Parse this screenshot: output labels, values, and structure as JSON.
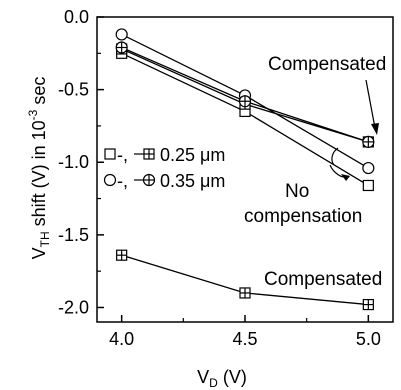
{
  "chart_data": {
    "type": "line",
    "xlabel": "V_D (V)",
    "xlabel_main": "V",
    "xlabel_sub": "D",
    "xlabel_unit": " (V)",
    "ylabel_pre": "V",
    "ylabel_sub": "TH",
    "ylabel_mid": " shift (V) in 10",
    "ylabel_sup": "-3",
    "ylabel_post": " sec",
    "xlim": [
      3.9,
      5.1
    ],
    "ylim": [
      -2.1,
      0.0
    ],
    "x_ticks": [
      "4.0",
      "4.5",
      "5.0"
    ],
    "x_tick_values": [
      4.0,
      4.5,
      5.0
    ],
    "y_ticks": [
      "0.0",
      "-0.5",
      "-1.0",
      "-1.5",
      "-2.0"
    ],
    "y_tick_values": [
      0.0,
      -0.5,
      -1.0,
      -1.5,
      -2.0
    ],
    "grid": false,
    "series": [
      {
        "marker": "square",
        "x": [
          4.0,
          4.5,
          5.0
        ],
        "values": [
          -0.25,
          -0.65,
          -1.16
        ]
      },
      {
        "marker": "circle",
        "x": [
          4.0,
          4.5,
          5.0
        ],
        "values": [
          -0.12,
          -0.54,
          -1.04
        ]
      },
      {
        "marker": "square-plus",
        "x": [
          4.0,
          4.5,
          5.0
        ],
        "values": [
          -0.22,
          -0.6,
          -0.86
        ]
      },
      {
        "marker": "circle-plus",
        "x": [
          4.0,
          4.5,
          5.0
        ],
        "values": [
          -0.21,
          -0.58,
          -0.86
        ]
      },
      {
        "marker": "square-plus",
        "x": [
          4.0,
          4.5,
          5.0
        ],
        "values": [
          -1.64,
          -1.9,
          -1.98
        ]
      }
    ],
    "legend": [
      {
        "markers": [
          "square",
          "square-plus"
        ],
        "sep": "-,",
        "label": "0.25 μm"
      },
      {
        "markers": [
          "circle",
          "circle-plus"
        ],
        "sep": "-,",
        "label": "0.35 μm"
      }
    ],
    "annotations": {
      "compensated_top": "Compensated",
      "no_comp_1": "No",
      "no_comp_2": "compensation",
      "compensated_bottom": "Compensated"
    }
  }
}
